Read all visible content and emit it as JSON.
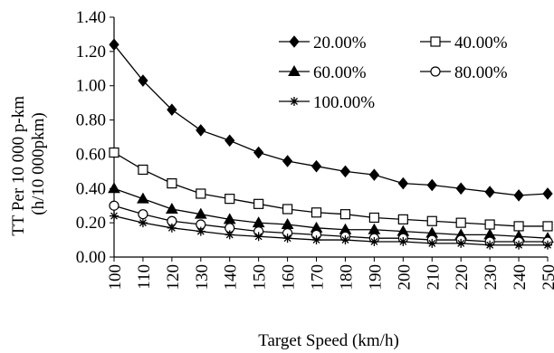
{
  "chart_data": {
    "type": "line",
    "title": "",
    "xlabel": "Target Speed (km/h)",
    "ylabel": "TT Per 10 000 p-km\n(h/10 000pkm)",
    "ylabel_lines": [
      "TT Per 10 000 p-km",
      "(h/10 000pkm)"
    ],
    "x": [
      100,
      110,
      120,
      130,
      140,
      150,
      160,
      170,
      180,
      190,
      200,
      210,
      220,
      230,
      240,
      250
    ],
    "xlim": [
      100,
      250
    ],
    "ylim": [
      0,
      1.4
    ],
    "y_ticks": [
      "0.00",
      "0.20",
      "0.40",
      "0.60",
      "0.80",
      "1.00",
      "1.20",
      "1.40"
    ],
    "grid": false,
    "legend_position": "top-right",
    "series": [
      {
        "name": "20.00%",
        "marker": "diamond",
        "color": "#000000",
        "values": [
          1.24,
          1.03,
          0.86,
          0.74,
          0.68,
          0.61,
          0.56,
          0.53,
          0.5,
          0.48,
          0.43,
          0.42,
          0.4,
          0.38,
          0.36,
          0.37
        ]
      },
      {
        "name": "40.00%",
        "marker": "square-open",
        "color": "#000000",
        "values": [
          0.61,
          0.51,
          0.43,
          0.37,
          0.34,
          0.31,
          0.28,
          0.26,
          0.25,
          0.23,
          0.22,
          0.21,
          0.2,
          0.19,
          0.18,
          0.18
        ]
      },
      {
        "name": "60.00%",
        "marker": "triangle",
        "color": "#000000",
        "values": [
          0.4,
          0.34,
          0.28,
          0.25,
          0.22,
          0.2,
          0.19,
          0.17,
          0.16,
          0.16,
          0.15,
          0.14,
          0.13,
          0.13,
          0.12,
          0.11
        ]
      },
      {
        "name": "80.00%",
        "marker": "circle-open",
        "color": "#000000",
        "values": [
          0.3,
          0.25,
          0.21,
          0.19,
          0.17,
          0.15,
          0.14,
          0.13,
          0.12,
          0.11,
          0.11,
          0.1,
          0.1,
          0.09,
          0.09,
          0.09
        ]
      },
      {
        "name": "100.00%",
        "marker": "asterisk",
        "color": "#000000",
        "values": [
          0.24,
          0.2,
          0.17,
          0.15,
          0.13,
          0.12,
          0.11,
          0.1,
          0.1,
          0.09,
          0.09,
          0.08,
          0.08,
          0.07,
          0.07,
          0.07
        ]
      }
    ]
  }
}
